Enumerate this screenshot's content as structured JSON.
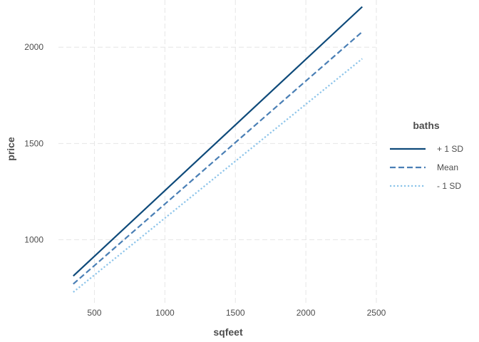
{
  "chart_data": {
    "type": "line",
    "xlabel": "sqfeet",
    "ylabel": "price",
    "xlim": [
      245,
      2495
    ],
    "ylim": [
      665,
      2245
    ],
    "x_ticks": [
      500,
      1000,
      1500,
      2000,
      2500
    ],
    "y_ticks": [
      1000,
      1500,
      2000
    ],
    "x_tick_labels": [
      "500",
      "1000",
      "1500",
      "2000",
      "2500"
    ],
    "y_tick_labels": [
      "1000",
      "1500",
      "2000"
    ],
    "grid": true,
    "legend": {
      "title": "baths",
      "position": "right"
    },
    "x": [
      350,
      2400
    ],
    "series": [
      {
        "name": "+ 1 SD",
        "values": [
          812,
          2210
        ],
        "color": "#0e4a7a",
        "linestyle": "solid"
      },
      {
        "name": "Mean",
        "values": [
          770,
          2080
        ],
        "color": "#4a7fb5",
        "linestyle": "dashed"
      },
      {
        "name": "- 1 SD",
        "values": [
          728,
          1940
        ],
        "color": "#8cc4ea",
        "linestyle": "dotted"
      }
    ]
  }
}
